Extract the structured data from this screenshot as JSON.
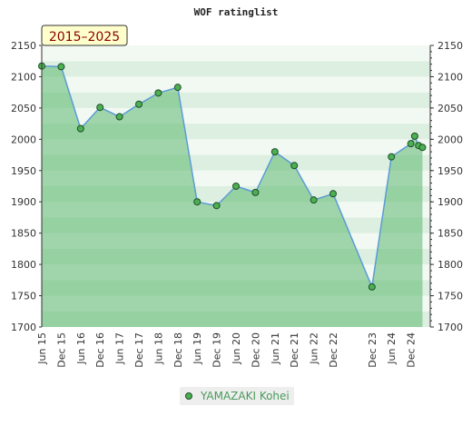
{
  "chart_data": {
    "type": "line",
    "title": "WOF ratinglist",
    "badge": "2015–2025",
    "xlabel": "",
    "ylabel": "",
    "ylim": [
      1700,
      2150
    ],
    "yticks": [
      1700,
      1750,
      1800,
      1850,
      1900,
      1950,
      2000,
      2050,
      2100,
      2150
    ],
    "xlim": [
      0,
      20
    ],
    "x_tick_labels": [
      "Jun 15",
      "Dec 15",
      "Jun 16",
      "Dec 16",
      "Jun 17",
      "Dec 17",
      "Jun 18",
      "Dec 18",
      "Jun 19",
      "Dec 19",
      "Jun 20",
      "Dec 20",
      "Jun 21",
      "Dec 21",
      "Jun 22",
      "Dec 22",
      "Dec 23",
      "Jun 24",
      "Dec 24"
    ],
    "x_tick_positions": [
      0,
      1,
      2,
      3,
      4,
      5,
      6,
      7,
      8,
      9,
      10,
      11,
      12,
      13,
      14,
      15,
      17,
      18,
      19
    ],
    "grid": true,
    "legend_position": "bottom-center",
    "colors": {
      "line": "#5b9bd5",
      "marker": "#4caf50",
      "fill": "#5cb870"
    },
    "series": [
      {
        "name": "YAMAZAKI Kohei",
        "x": [
          0,
          1,
          2,
          3,
          4,
          5,
          6,
          7,
          8,
          9,
          10,
          11,
          12,
          13,
          14,
          15,
          17,
          18,
          19,
          19.2,
          19.4,
          19.6
        ],
        "y": [
          2117,
          2116,
          2017,
          2051,
          2036,
          2056,
          2074,
          2083,
          1900,
          1894,
          1925,
          1915,
          1980,
          1958,
          1903,
          1913,
          1764,
          1972,
          1993,
          2005,
          1990,
          1987
        ]
      }
    ]
  }
}
